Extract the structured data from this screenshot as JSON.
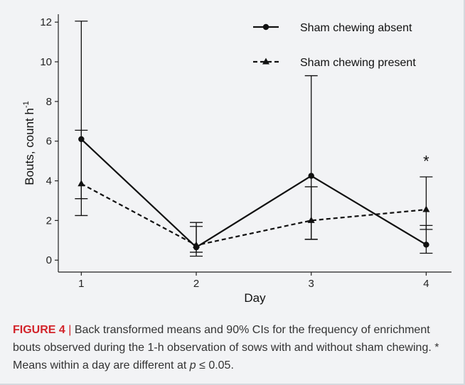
{
  "chart_data": {
    "type": "line",
    "xlabel": "Day",
    "ylabel": "Bouts, count h",
    "ylabel_superscript": "-1",
    "x": [
      1,
      2,
      3,
      4
    ],
    "x_tick_labels": [
      "1",
      "2",
      "3",
      "4"
    ],
    "xlim": [
      0.8,
      4.22
    ],
    "ylim": [
      -0.6,
      12.4
    ],
    "y_ticks": [
      0,
      2,
      4,
      6,
      8,
      10,
      12
    ],
    "y_tick_labels": [
      "0",
      "2",
      "4",
      "6",
      "8",
      "10",
      "12"
    ],
    "grid": false,
    "legend_position": "top-right",
    "series": [
      {
        "name": "Sham chewing absent",
        "line_style": "solid",
        "marker": "circle",
        "values": [
          6.1,
          0.65,
          4.25,
          0.78
        ],
        "ci_lower": [
          3.1,
          0.2,
          1.05,
          0.35
        ],
        "ci_upper": [
          12.05,
          1.9,
          9.3,
          1.75
        ]
      },
      {
        "name": "Sham chewing present",
        "line_style": "dashed",
        "marker": "triangle",
        "values": [
          3.85,
          0.75,
          2.0,
          2.55
        ],
        "ci_lower": [
          2.25,
          0.4,
          1.05,
          1.55
        ],
        "ci_upper": [
          6.55,
          1.7,
          3.7,
          4.2
        ]
      }
    ],
    "annotations": [
      {
        "text": "*",
        "x": 4,
        "y": 5.15
      }
    ]
  },
  "caption": {
    "label": "FIGURE 4",
    "separator": "|",
    "text_before": " Back transformed means and 90% CIs for the frequency of enrichment bouts observed during the 1-h observation of sows with and without sham chewing. * Means within a day are different at ",
    "p_symbol": "p",
    "text_after": " ≤ 0.05."
  }
}
